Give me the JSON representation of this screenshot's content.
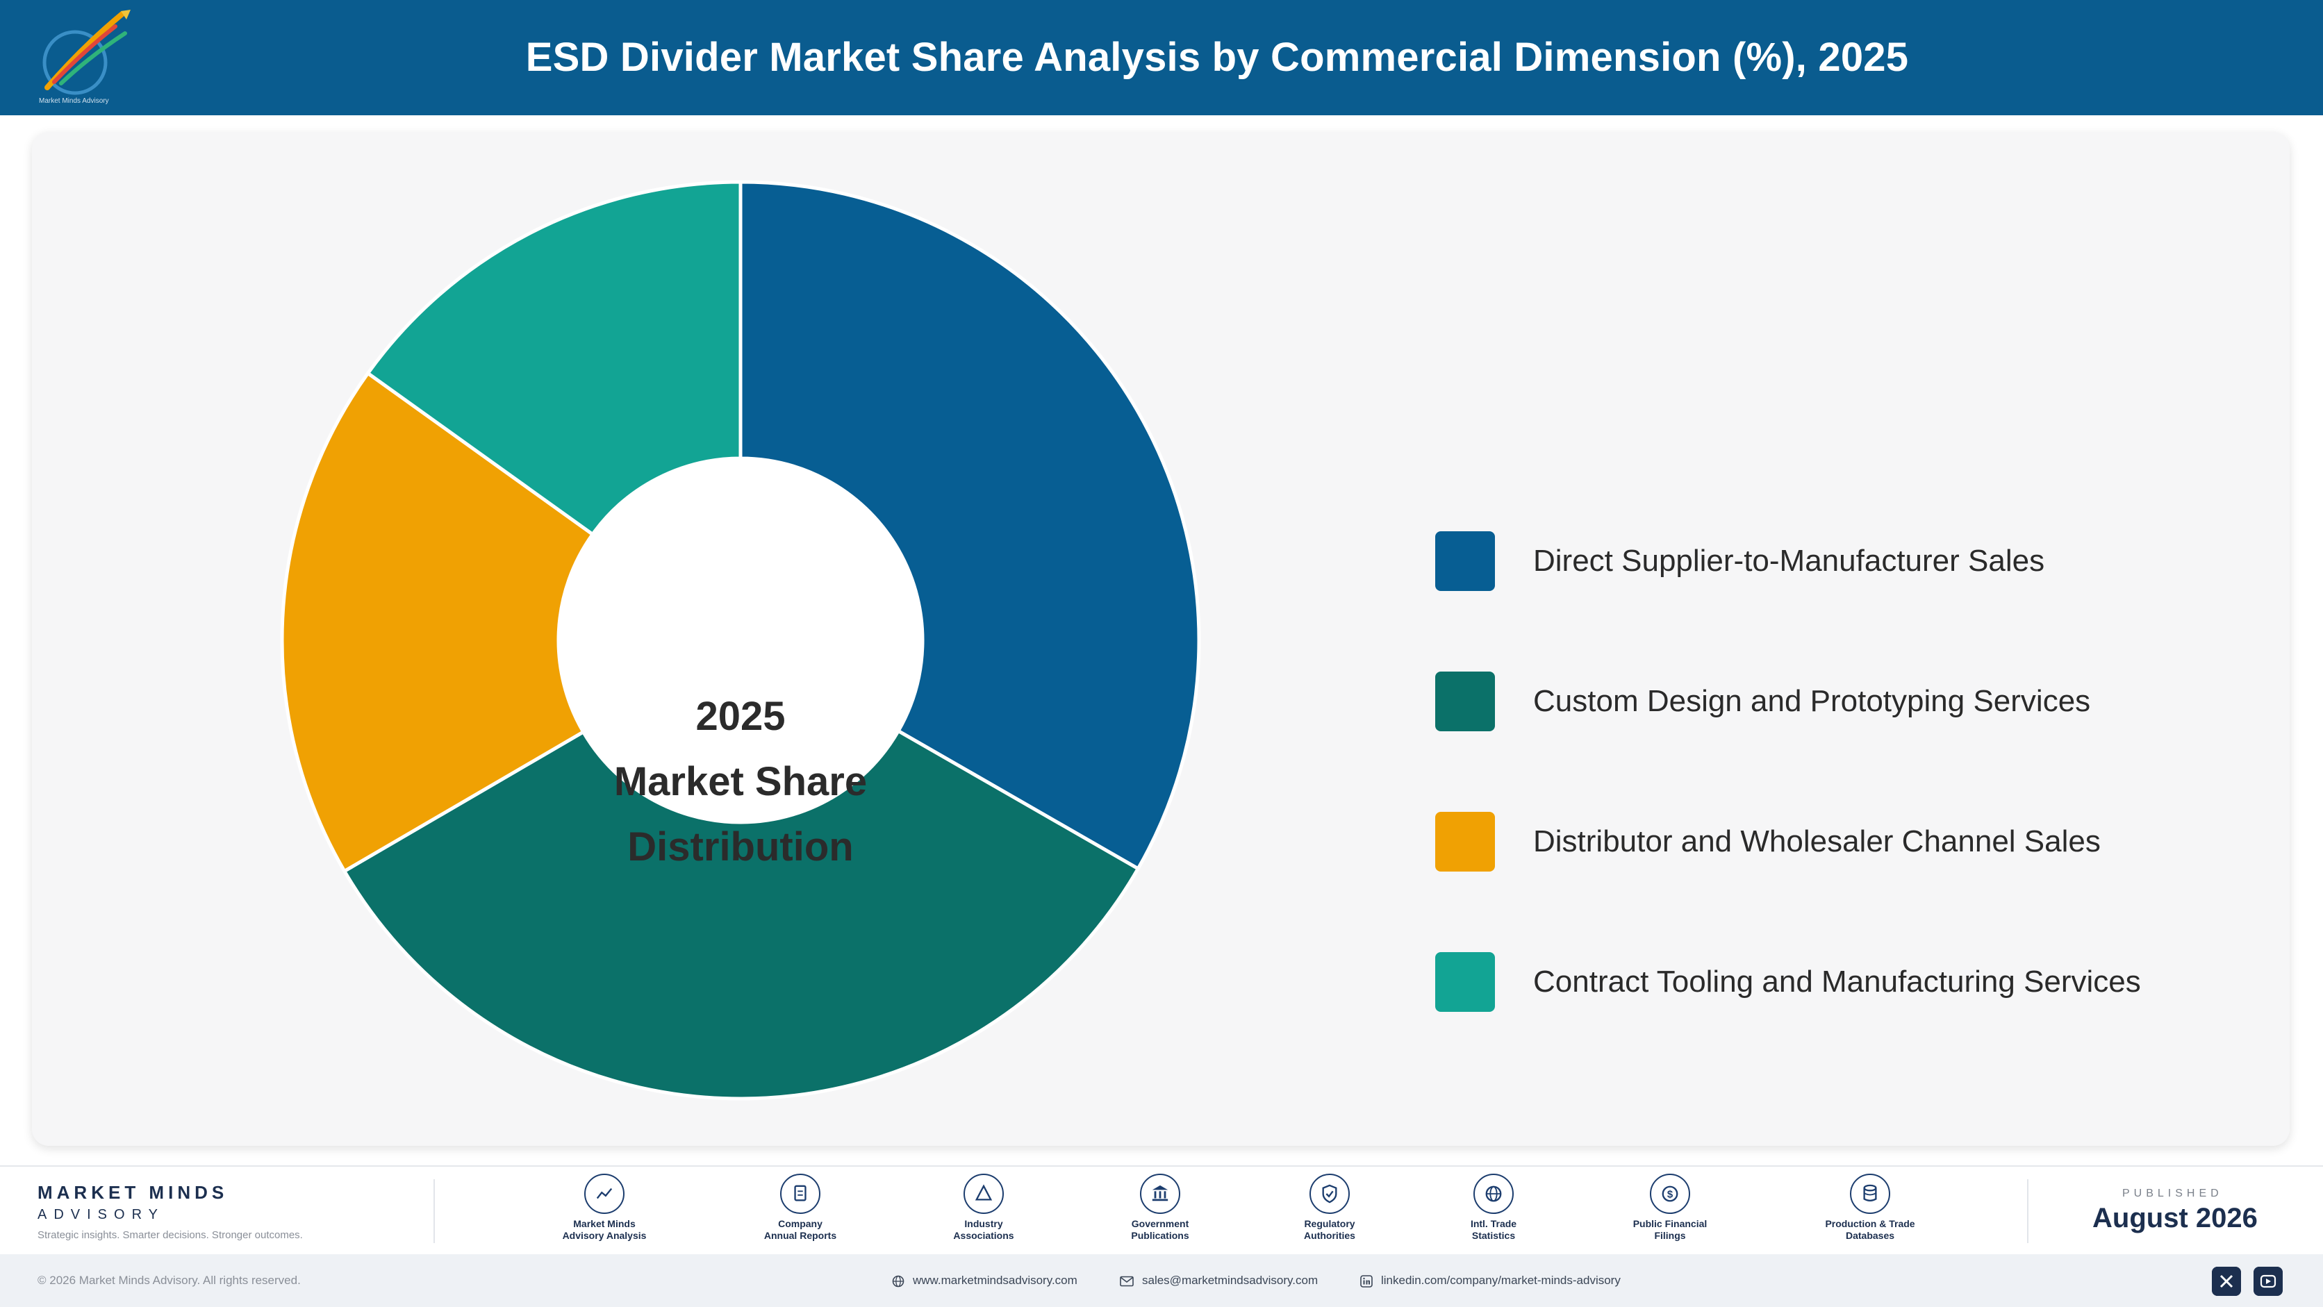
{
  "header": {
    "title": "ESD Divider Market Share Analysis by Commercial Dimension (%), 2025",
    "logo_icon": "market-minds-logo-icon",
    "logo_caption": "Market Minds Advisory"
  },
  "chart_data": {
    "type": "pie",
    "style": "donut",
    "categories": [
      "Direct Supplier-to-Manufacturer Sales",
      "Custom Design and Prototyping Services",
      "Distributor and Wholesaler Channel Sales",
      "Contract Tooling and Manufacturing Services"
    ],
    "values": [
      33.3,
      33.3,
      18.3,
      15.1
    ],
    "colors": [
      "#075e93",
      "#0b7169",
      "#f0a103",
      "#12a494"
    ],
    "center_label": [
      "2025",
      "Market Share",
      "Distribution"
    ],
    "legend_position": "right"
  },
  "footer": {
    "brand_name": "MARKET MINDS",
    "brand_sub": "ADVISORY",
    "tagline": "Strategic insights. Smarter decisions. Stronger outcomes.",
    "sources": [
      {
        "label": "Market Minds\nAdvisory Analysis",
        "icon": "trend-chart-icon"
      },
      {
        "label": "Company\nAnnual Reports",
        "icon": "document-icon"
      },
      {
        "label": "Industry\nAssociations",
        "icon": "network-icon"
      },
      {
        "label": "Government\nPublications",
        "icon": "government-building-icon"
      },
      {
        "label": "Regulatory\nAuthorities",
        "icon": "shield-check-icon"
      },
      {
        "label": "Intl. Trade\nStatistics",
        "icon": "globe-icon"
      },
      {
        "label": "Public Financial\nFilings",
        "icon": "dollar-coin-icon"
      },
      {
        "label": "Production & Trade\nDatabases",
        "icon": "database-icon"
      }
    ],
    "published_label": "PUBLISHED",
    "published_date": "August 2026"
  },
  "bottom": {
    "copyright": "© 2026 Market Minds Advisory. All rights reserved.",
    "website": "www.marketmindsadvisory.com",
    "email": "sales@marketmindsadvisory.com",
    "linkedin": "linkedin.com/company/market-minds-advisory",
    "social_icons": [
      "x-icon",
      "youtube-icon"
    ]
  }
}
